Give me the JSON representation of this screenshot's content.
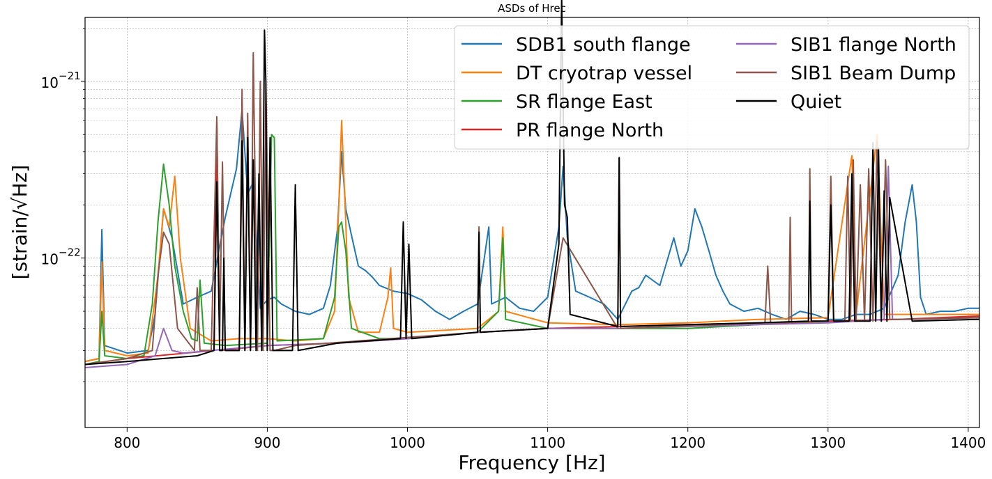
{
  "chart_data": {
    "type": "line",
    "title": "ASDs of Hrec",
    "xlabel": "Frequency [Hz]",
    "ylabel": "[strain/√Hz]",
    "xlim": [
      770,
      1408
    ],
    "ylim": [
      1.1e-23,
      2.3e-21
    ],
    "yscale": "log",
    "grid": true,
    "legend": {
      "position": "top-right",
      "columns": 2
    },
    "x_ticks": [
      800,
      900,
      1000,
      1100,
      1200,
      1300,
      1400
    ],
    "x_tick_labels": [
      "800",
      "900",
      "1000",
      "1100",
      "1200",
      "1300",
      "1400"
    ],
    "y_ticks": [
      1e-22,
      1e-21
    ],
    "y_tick_labels": [
      {
        "base": "10",
        "exp": "−22"
      },
      {
        "base": "10",
        "exp": "−21"
      }
    ],
    "series": [
      {
        "name": "SDB1 south flange",
        "color": "#1f77b4",
        "x": [
          770,
          780,
          782,
          784,
          800,
          815,
          820,
          826,
          832,
          840,
          850,
          860,
          870,
          878,
          882,
          886,
          890,
          895,
          900,
          905,
          910,
          920,
          930,
          940,
          945,
          950,
          953,
          956,
          960,
          965,
          970,
          975,
          980,
          990,
          1000,
          1010,
          1020,
          1030,
          1040,
          1050,
          1058,
          1060,
          1070,
          1080,
          1090,
          1100,
          1108,
          1111,
          1114,
          1120,
          1130,
          1140,
          1150,
          1160,
          1165,
          1170,
          1180,
          1190,
          1195,
          1200,
          1205,
          1210,
          1215,
          1220,
          1225,
          1230,
          1240,
          1250,
          1260,
          1270,
          1280,
          1290,
          1300,
          1310,
          1320,
          1330,
          1340,
          1350,
          1355,
          1360,
          1363,
          1366,
          1370,
          1380,
          1390,
          1400,
          1408
        ],
        "y": [
          2.6e-23,
          2.7e-23,
          1.45e-22,
          3.2e-23,
          2.9e-23,
          3e-23,
          4.8e-23,
          1.9e-22,
          1.3e-22,
          5.5e-23,
          6e-23,
          6.5e-23,
          1.7e-22,
          3.2e-22,
          6.9e-22,
          2.3e-22,
          2.7e-22,
          5.2e-23,
          5.8e-23,
          6e-23,
          5.5e-23,
          5e-23,
          4.8e-23,
          5.2e-23,
          7e-23,
          1.45e-22,
          4e-22,
          1.9e-22,
          1.35e-22,
          9e-23,
          8.5e-23,
          7.8e-23,
          7e-23,
          6.5e-23,
          6.3e-23,
          5.8e-23,
          5e-23,
          4.5e-23,
          5e-23,
          5.5e-23,
          1.5e-22,
          5.5e-23,
          6e-23,
          5.2e-23,
          5e-23,
          6e-23,
          1.5e-22,
          3.3e-22,
          1.3e-22,
          6.5e-23,
          6e-23,
          5.5e-23,
          4.5e-23,
          6.5e-23,
          6.8e-23,
          8e-23,
          7e-23,
          1.3e-22,
          9e-23,
          1.1e-22,
          1.9e-22,
          1.5e-22,
          1.1e-22,
          8e-23,
          6.5e-23,
          5.5e-23,
          5e-23,
          5.2e-23,
          4.8e-23,
          4.5e-23,
          5e-23,
          4.8e-23,
          4.5e-23,
          4.5e-23,
          4.8e-23,
          4.8e-23,
          5.2e-23,
          8e-23,
          1.6e-22,
          2.6e-22,
          1.6e-22,
          6e-23,
          4.8e-23,
          5e-23,
          5e-23,
          5.2e-23,
          5.2e-23
        ]
      },
      {
        "name": "DT cryotrap vessel",
        "color": "#ff7f0e",
        "x": [
          770,
          780,
          782,
          784,
          800,
          815,
          822,
          826,
          830,
          834,
          838,
          845,
          860,
          880,
          900,
          920,
          940,
          948,
          951,
          953,
          955,
          958,
          965,
          980,
          986,
          988,
          990,
          1000,
          1050,
          1065,
          1068,
          1070,
          1100,
          1150,
          1200,
          1250,
          1300,
          1317,
          1320,
          1335,
          1340,
          1360,
          1408
        ],
        "y": [
          2.6e-23,
          2.7e-23,
          9.5e-23,
          3e-23,
          2.8e-23,
          2.9e-23,
          8e-23,
          1.9e-22,
          1.5e-22,
          2.9e-22,
          1e-22,
          4e-23,
          3.4e-23,
          3.5e-23,
          3.5e-23,
          3.4e-23,
          3.5e-23,
          5e-23,
          2e-22,
          6e-22,
          2.5e-22,
          6e-23,
          3.8e-23,
          3.8e-23,
          6e-23,
          8.8e-23,
          4e-23,
          3.8e-23,
          4e-23,
          5e-23,
          1.5e-22,
          5e-23,
          4.3e-23,
          4.2e-23,
          4.3e-23,
          4.5e-23,
          4.6e-23,
          3.8e-22,
          4.8e-23,
          5e-22,
          4.8e-23,
          4.8e-23,
          4.8e-23
        ]
      },
      {
        "name": "SR flange East",
        "color": "#2ca02c",
        "x": [
          770,
          780,
          782,
          784,
          800,
          812,
          818,
          822,
          826,
          830,
          834,
          840,
          846,
          850,
          852,
          855,
          870,
          900,
          903,
          905,
          907,
          940,
          948,
          951,
          953,
          956,
          960,
          980,
          1000,
          1050,
          1065,
          1068,
          1070,
          1100,
          1150,
          1200,
          1250,
          1300,
          1350,
          1408
        ],
        "y": [
          2.5e-23,
          2.6e-23,
          5e-23,
          2.8e-23,
          2.7e-23,
          2.8e-23,
          5.5e-23,
          1.6e-22,
          3.4e-22,
          2e-22,
          9e-23,
          5e-23,
          3.5e-23,
          3.4e-23,
          7.5e-23,
          3.3e-23,
          3.2e-23,
          3.3e-23,
          5e-22,
          4.8e-22,
          3.4e-23,
          3.5e-23,
          6e-23,
          1.5e-22,
          1.6e-22,
          1.1e-22,
          4e-23,
          3.5e-23,
          3.5e-23,
          3.8e-23,
          5e-23,
          1.3e-22,
          4.5e-23,
          4e-23,
          4e-23,
          4e-23,
          4.2e-23,
          4.4e-23,
          4.5e-23,
          4.6e-23
        ]
      },
      {
        "name": "PR flange North",
        "color": "#d62728",
        "x": [
          770,
          800,
          862,
          864,
          866,
          900,
          950,
          1000,
          1050,
          1100,
          1150,
          1200,
          1250,
          1300,
          1350,
          1408
        ],
        "y": [
          2.5e-23,
          2.7e-23,
          3e-23,
          6e-22,
          3e-23,
          3.2e-23,
          3.3e-23,
          3.5e-23,
          3.8e-23,
          4e-23,
          4.1e-23,
          4.2e-23,
          4.3e-23,
          4.4e-23,
          4.5e-23,
          4.7e-23
        ]
      },
      {
        "name": "SIB1 flange North",
        "color": "#9467bd",
        "x": [
          770,
          800,
          820,
          826,
          832,
          840,
          860,
          900,
          950,
          1000,
          1050,
          1100,
          1150,
          1200,
          1250,
          1300,
          1340,
          1343,
          1346,
          1360,
          1408
        ],
        "y": [
          2.4e-23,
          2.5e-23,
          2.8e-23,
          4e-23,
          3e-23,
          2.9e-23,
          3e-23,
          3.2e-23,
          3.3e-23,
          3.5e-23,
          3.8e-23,
          4e-23,
          4e-23,
          4.1e-23,
          4.2e-23,
          4.3e-23,
          4.5e-23,
          3.3e-22,
          4.5e-23,
          4.5e-23,
          4.6e-23
        ]
      },
      {
        "name": "SIB1 Beam Dump",
        "color": "#8c564b",
        "x": [
          770,
          800,
          818,
          822,
          826,
          830,
          836,
          848,
          850,
          852,
          860,
          862,
          864,
          866,
          868,
          870,
          872,
          880,
          882,
          884,
          886,
          888,
          890,
          893,
          895,
          897,
          899,
          902,
          905,
          920,
          1050,
          1051,
          1052,
          1100,
          1111,
          1150,
          1151,
          1152,
          1255,
          1257,
          1259,
          1272,
          1273,
          1274,
          1286,
          1287,
          1288,
          1300,
          1302,
          1304,
          1312,
          1314,
          1316,
          1318,
          1320,
          1323,
          1326,
          1329,
          1332,
          1335,
          1338,
          1341,
          1344,
          1350,
          1408
        ],
        "y": [
          2.5e-23,
          2.7e-23,
          3e-23,
          8e-23,
          1.4e-22,
          1.2e-22,
          4e-23,
          3e-23,
          6.8e-23,
          3e-23,
          3e-23,
          1.3e-22,
          6.3e-22,
          3.5e-23,
          3.5e-22,
          3e-23,
          3e-23,
          3e-23,
          9e-22,
          3e-23,
          6.6e-22,
          3e-23,
          1.45e-21,
          3e-23,
          1e-21,
          3e-23,
          9.8e-22,
          3e-23,
          3e-23,
          3.2e-23,
          3.8e-23,
          1.5e-22,
          3.8e-23,
          4e-23,
          1.3e-22,
          4e-23,
          3.7e-22,
          4e-23,
          4.3e-23,
          9e-23,
          4.3e-23,
          4.3e-23,
          1.7e-22,
          4.3e-23,
          4.4e-23,
          3.2e-22,
          4.4e-23,
          4.4e-23,
          2.9e-22,
          4.4e-23,
          4.4e-23,
          2.9e-22,
          4.4e-23,
          3.6e-22,
          4.4e-23,
          2.6e-22,
          4.4e-23,
          3.2e-22,
          4.4e-23,
          4.6e-22,
          4.4e-23,
          3.6e-22,
          4.5e-23,
          4.5e-23,
          4.6e-23
        ]
      },
      {
        "name": "Quiet",
        "color": "#000000",
        "x": [
          770,
          800,
          850,
          862,
          864,
          866,
          868,
          869,
          870,
          880,
          882,
          884,
          886,
          888,
          890,
          892,
          894,
          896,
          898,
          899,
          900,
          902,
          904,
          906,
          918,
          920,
          922,
          950,
          995,
          997,
          999,
          1001,
          1003,
          1050,
          1051,
          1052,
          1100,
          1108,
          1110,
          1112,
          1114,
          1116,
          1150,
          1151,
          1152,
          1200,
          1250,
          1286,
          1287,
          1288,
          1300,
          1302,
          1304,
          1315,
          1317,
          1319,
          1330,
          1332,
          1334,
          1336,
          1338,
          1340,
          1342,
          1344,
          1360,
          1408
        ],
        "y": [
          2.5e-23,
          2.6e-23,
          2.8e-23,
          3e-23,
          2.7e-22,
          3e-23,
          3e-23,
          1e-22,
          3e-23,
          3e-23,
          4.6e-22,
          3e-23,
          4.8e-22,
          3e-23,
          3.6e-22,
          3e-23,
          3e-22,
          3e-23,
          1.95e-21,
          9.8e-22,
          3e-23,
          4.8e-22,
          3e-23,
          3e-23,
          3e-23,
          2.6e-22,
          3e-23,
          3.3e-23,
          3.5e-23,
          1.6e-22,
          3.5e-23,
          1.2e-22,
          3.5e-23,
          3.8e-23,
          1.4e-22,
          3.8e-23,
          4e-23,
          1.2e-22,
          3e-21,
          2e-22,
          1.7e-22,
          4.8e-23,
          4.1e-23,
          3.7e-22,
          4.1e-23,
          4.2e-23,
          4.3e-23,
          4.4e-23,
          2.1e-22,
          4.4e-23,
          4.4e-23,
          2e-22,
          4.4e-23,
          4.4e-23,
          3e-22,
          4.4e-23,
          4.4e-23,
          4.5e-22,
          4.4e-23,
          4.2e-22,
          4.4e-23,
          2.4e-22,
          4.4e-23,
          2.2e-22,
          4.4e-23,
          4.5e-23
        ]
      }
    ]
  }
}
